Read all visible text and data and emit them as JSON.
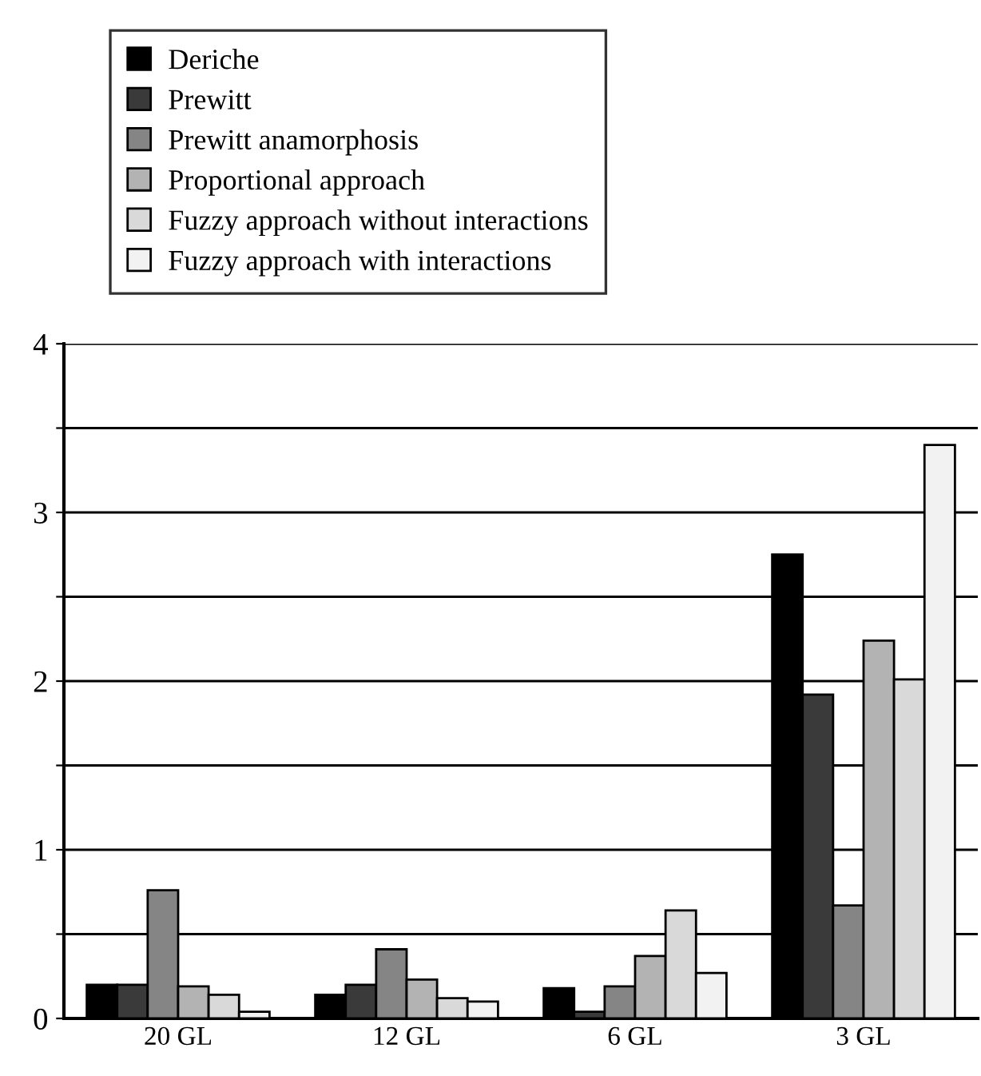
{
  "chart_data": {
    "type": "bar",
    "categories": [
      "20 GL",
      "12 GL",
      "6 GL",
      "3 GL"
    ],
    "series": [
      {
        "name": "Deriche",
        "color": "#000000",
        "values": [
          0.2,
          0.14,
          0.18,
          2.75
        ]
      },
      {
        "name": "Prewitt",
        "color": "#3a3a3a",
        "values": [
          0.2,
          0.2,
          0.04,
          1.92
        ]
      },
      {
        "name": "Prewitt anamorphosis",
        "color": "#858585",
        "values": [
          0.76,
          0.41,
          0.19,
          0.67
        ]
      },
      {
        "name": "Proportional approach",
        "color": "#b3b3b3",
        "values": [
          0.19,
          0.23,
          0.37,
          2.24
        ]
      },
      {
        "name": "Fuzzy approach without interactions",
        "color": "#d9d9d9",
        "values": [
          0.14,
          0.12,
          0.64,
          2.01
        ]
      },
      {
        "name": "Fuzzy approach with interactions",
        "color": "#f2f2f2",
        "values": [
          0.04,
          0.1,
          0.27,
          3.4
        ]
      }
    ],
    "ylim": [
      0,
      4
    ],
    "yticks": [
      0,
      {
        "value": 0.5,
        "label": null
      },
      1,
      {
        "value": 1.5,
        "label": null
      },
      2,
      {
        "value": 2.5,
        "label": null
      },
      3,
      {
        "value": 3.5,
        "label": null
      },
      4
    ],
    "grid": "y",
    "legend": "top"
  }
}
